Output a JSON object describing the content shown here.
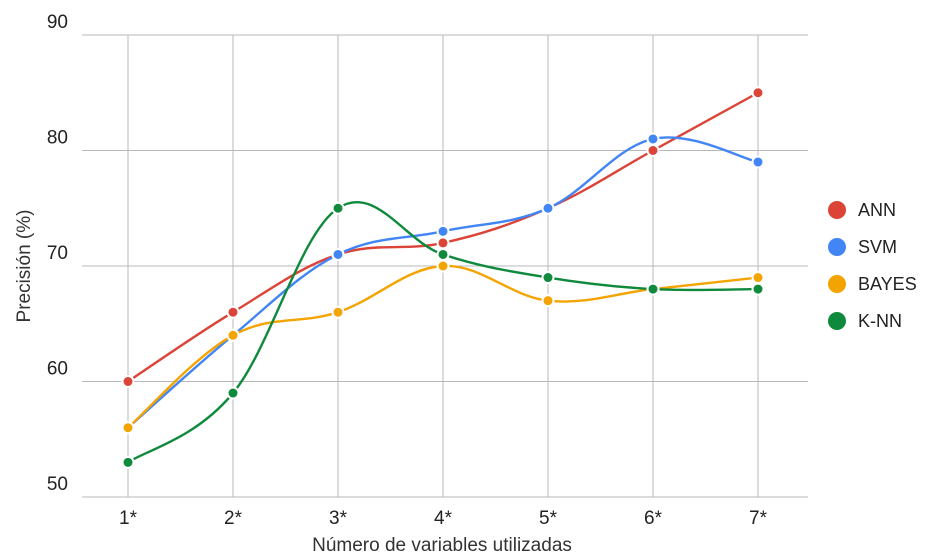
{
  "chart_data": {
    "type": "line",
    "categories": [
      "1*",
      "2*",
      "3*",
      "4*",
      "5*",
      "6*",
      "7*"
    ],
    "xlabel": "Número de variables utilizadas",
    "ylabel": "Precisión (%)",
    "ylim": [
      50,
      90
    ],
    "yticks": [
      50,
      60,
      70,
      80,
      90
    ],
    "grid": true,
    "legend_position": "right",
    "series": [
      {
        "name": "ANN",
        "color": "#db4437",
        "values": [
          60,
          66,
          71,
          72,
          75,
          80,
          85
        ]
      },
      {
        "name": "SVM",
        "color": "#4285f4",
        "values": [
          56,
          64,
          71,
          73,
          75,
          81,
          79
        ]
      },
      {
        "name": "BAYES",
        "color": "#f4a400",
        "values": [
          56,
          64,
          66,
          70,
          67,
          68,
          69
        ]
      },
      {
        "name": "K-NN",
        "color": "#0f8a3c",
        "values": [
          53,
          59,
          75,
          71,
          69,
          68,
          68
        ]
      }
    ]
  }
}
